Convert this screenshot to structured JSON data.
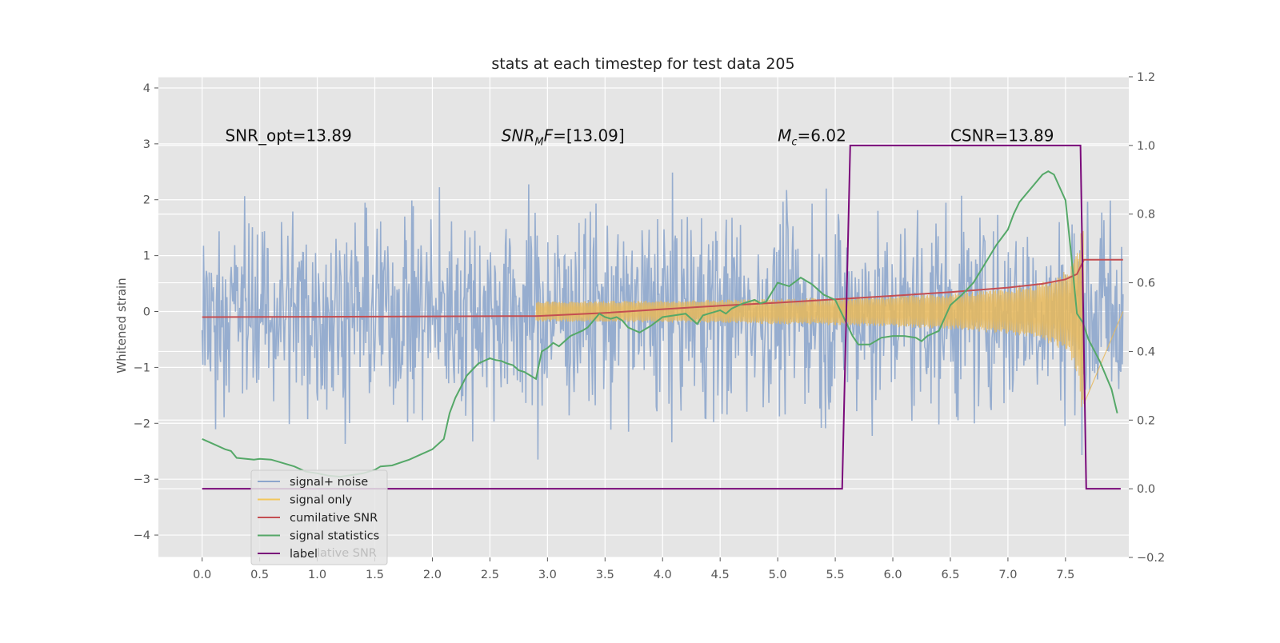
{
  "chart_data": {
    "type": "line",
    "title": "stats at each timestep for test data 205",
    "ylabel": "Whitened strain",
    "xlim": [
      -0.38,
      8.05
    ],
    "ylim": [
      -4.4,
      4.2
    ],
    "y2lim": [
      -0.2,
      1.2
    ],
    "grid": true,
    "xticks": [
      "0.0",
      "0.5",
      "1.0",
      "1.5",
      "2.0",
      "2.5",
      "3.0",
      "3.5",
      "4.0",
      "4.5",
      "5.0",
      "5.5",
      "6.0",
      "6.5",
      "7.0",
      "7.5"
    ],
    "yticks": [
      "4",
      "3",
      "2",
      "1",
      "0",
      "−1",
      "−2",
      "−3",
      "−4"
    ],
    "y2ticks": [
      "1.2",
      "1.0",
      "0.8",
      "0.6",
      "0.4",
      "0.2",
      "0.0",
      "−0.2"
    ],
    "annotations": [
      {
        "text": "SNR_opt=13.89",
        "x": 0.2,
        "y": 3.05,
        "italic_sub": false
      },
      {
        "text_main": "SNR",
        "text_sub": "M",
        "text_tail": "F=[13.09]",
        "x": 2.6,
        "y": 3.05,
        "italic_sub": true
      },
      {
        "text_main": "M",
        "text_sub": "c",
        "text_tail": "=6.02",
        "x": 5.0,
        "y": 3.05,
        "italic_sub": true
      },
      {
        "text": "CSNR=13.89",
        "x": 6.5,
        "y": 3.05,
        "italic_sub": false
      }
    ],
    "legend_location": "lower-left",
    "legend": [
      {
        "name": "signal+ noise",
        "color": "#8da6cc"
      },
      {
        "name": "signal only",
        "color": "#f2c75c"
      },
      {
        "name": "cumilative SNR",
        "color": "#c44e52"
      },
      {
        "name": "signal statistics",
        "color": "#55a868"
      },
      {
        "name": "label",
        "color": "#7a0a7a"
      }
    ],
    "legend_ghost_text": "lative SNR",
    "series": [
      {
        "name": "signal+ noise",
        "axis": "left",
        "kind": "noise",
        "x_range": [
          0.0,
          8.0
        ],
        "color": "#8da6cc"
      },
      {
        "name": "signal only",
        "axis": "left",
        "kind": "chirp",
        "x_start": 2.9,
        "x_end": 7.66,
        "amplitude_end": 1.8,
        "color": "#e8b85a"
      },
      {
        "name": "cumilative SNR",
        "axis": "right",
        "x": [
          0.0,
          1.0,
          2.0,
          2.9,
          3.5,
          4.0,
          4.5,
          5.0,
          5.5,
          6.0,
          6.5,
          7.0,
          7.3,
          7.5,
          7.6,
          7.66,
          8.0
        ],
        "y": [
          0.5,
          0.501,
          0.502,
          0.503,
          0.512,
          0.523,
          0.533,
          0.542,
          0.552,
          0.562,
          0.573,
          0.586,
          0.597,
          0.61,
          0.625,
          0.667,
          0.667
        ],
        "color": "#c44e52"
      },
      {
        "name": "signal statistics",
        "axis": "right",
        "x": [
          0.0,
          0.1,
          0.2,
          0.25,
          0.3,
          0.45,
          0.5,
          0.6,
          0.7,
          0.8,
          0.9,
          1.0,
          1.1,
          1.2,
          1.3,
          1.4,
          1.5,
          1.55,
          1.65,
          1.8,
          1.9,
          2.0,
          2.1,
          2.15,
          2.2,
          2.3,
          2.4,
          2.5,
          2.55,
          2.6,
          2.65,
          2.7,
          2.75,
          2.8,
          2.85,
          2.9,
          2.95,
          3.0,
          3.05,
          3.1,
          3.2,
          3.3,
          3.35,
          3.4,
          3.45,
          3.5,
          3.55,
          3.6,
          3.65,
          3.7,
          3.8,
          3.9,
          4.0,
          4.1,
          4.2,
          4.3,
          4.35,
          4.4,
          4.5,
          4.55,
          4.6,
          4.7,
          4.8,
          4.85,
          4.9,
          5.0,
          5.1,
          5.2,
          5.3,
          5.4,
          5.5,
          5.6,
          5.65,
          5.7,
          5.8,
          5.9,
          6.0,
          6.1,
          6.2,
          6.25,
          6.3,
          6.4,
          6.5,
          6.6,
          6.7,
          6.8,
          6.9,
          7.0,
          7.05,
          7.1,
          7.2,
          7.3,
          7.35,
          7.4,
          7.5,
          7.55,
          7.6,
          7.65,
          7.7,
          7.8,
          7.9,
          7.95
        ],
        "y": [
          0.145,
          0.13,
          0.115,
          0.11,
          0.09,
          0.085,
          0.087,
          0.085,
          0.075,
          0.065,
          0.05,
          0.045,
          0.038,
          0.035,
          0.04,
          0.045,
          0.055,
          0.065,
          0.068,
          0.085,
          0.1,
          0.115,
          0.145,
          0.22,
          0.265,
          0.33,
          0.365,
          0.38,
          0.375,
          0.372,
          0.365,
          0.36,
          0.345,
          0.34,
          0.33,
          0.32,
          0.4,
          0.41,
          0.425,
          0.415,
          0.445,
          0.46,
          0.47,
          0.49,
          0.51,
          0.5,
          0.495,
          0.5,
          0.49,
          0.47,
          0.455,
          0.475,
          0.5,
          0.505,
          0.51,
          0.48,
          0.505,
          0.51,
          0.52,
          0.51,
          0.525,
          0.54,
          0.55,
          0.54,
          0.545,
          0.6,
          0.59,
          0.615,
          0.595,
          0.565,
          0.55,
          0.48,
          0.445,
          0.42,
          0.42,
          0.44,
          0.445,
          0.445,
          0.44,
          0.43,
          0.445,
          0.46,
          0.535,
          0.565,
          0.6,
          0.655,
          0.71,
          0.755,
          0.8,
          0.835,
          0.875,
          0.915,
          0.925,
          0.915,
          0.84,
          0.68,
          0.51,
          0.485,
          0.435,
          0.37,
          0.29,
          0.22
        ],
        "color": "#55a868"
      },
      {
        "name": "label",
        "axis": "right",
        "x": [
          0.0,
          5.56,
          5.63,
          7.63,
          7.68,
          7.98
        ],
        "y": [
          0.0,
          0.0,
          1.0,
          1.0,
          0.0,
          0.0
        ],
        "color": "#7a0a7a"
      }
    ]
  }
}
